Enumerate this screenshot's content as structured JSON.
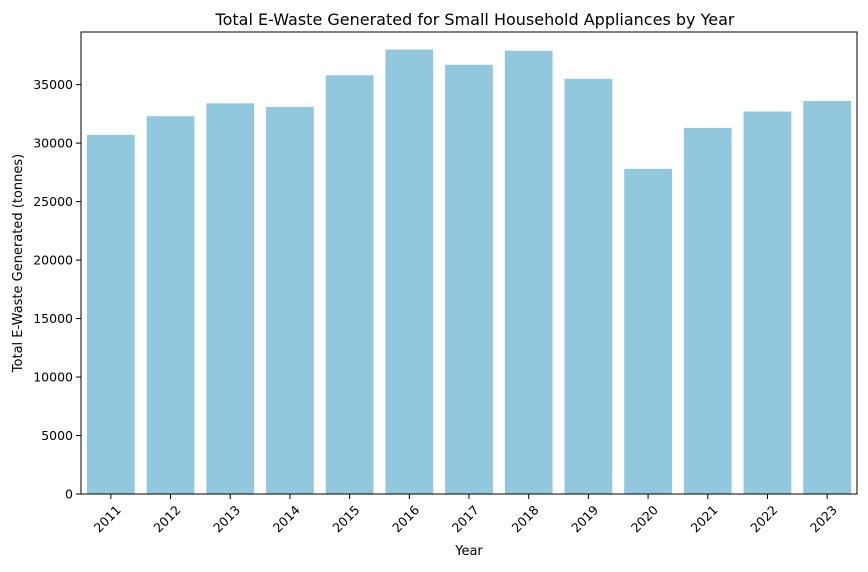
{
  "chart_data": {
    "type": "bar",
    "title": "Total E-Waste Generated for Small Household Appliances by Year",
    "xlabel": "Year",
    "ylabel": "Total E-Waste Generated (tonnes)",
    "categories": [
      "2011",
      "2012",
      "2013",
      "2014",
      "2015",
      "2016",
      "2017",
      "2018",
      "2019",
      "2020",
      "2021",
      "2022",
      "2023"
    ],
    "values": [
      30700,
      32300,
      33400,
      33100,
      35800,
      38000,
      36700,
      37900,
      35500,
      27800,
      31300,
      32700,
      33600
    ],
    "ylim": [
      0,
      39500
    ],
    "yticks": [
      0,
      5000,
      10000,
      15000,
      20000,
      25000,
      30000,
      35000
    ],
    "ytick_labels": [
      "0",
      "5000",
      "10000",
      "15000",
      "20000",
      "25000",
      "30000",
      "35000"
    ],
    "xtick_rotation": -45,
    "grid": false,
    "legend": "none",
    "bar_color": "#92c8de"
  }
}
